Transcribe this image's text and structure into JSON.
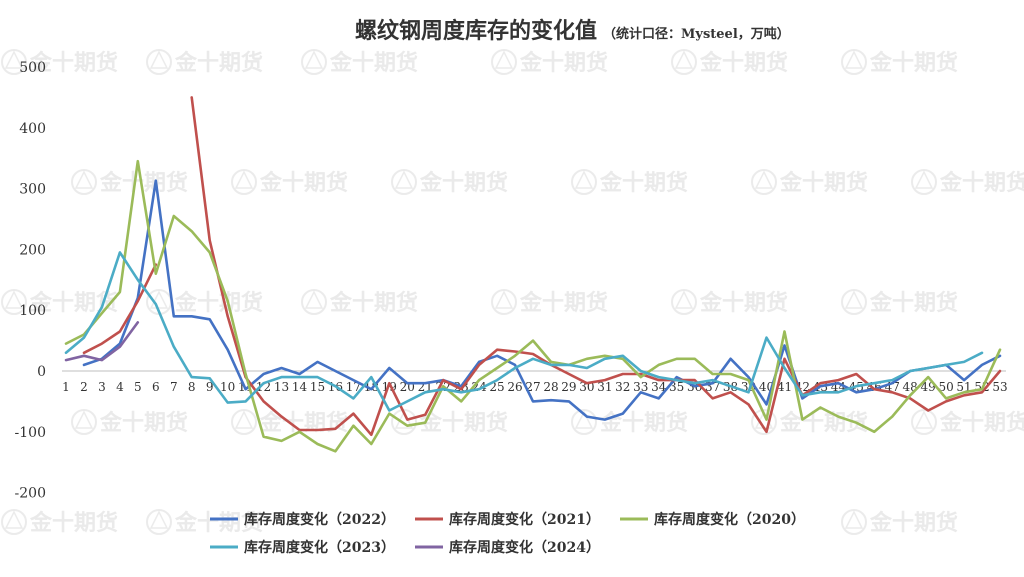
{
  "chart_data": {
    "type": "line",
    "title": "螺纹钢周度库存的变化值",
    "subtitle": "（统计口径：Mysteel，万吨）",
    "watermark": "金十期货",
    "ylim": [
      -200,
      500
    ],
    "yticks": [
      -200,
      -100,
      0,
      100,
      200,
      300,
      400,
      500
    ],
    "x": [
      1,
      2,
      3,
      4,
      5,
      6,
      7,
      8,
      9,
      10,
      11,
      12,
      13,
      14,
      15,
      16,
      17,
      18,
      19,
      20,
      21,
      22,
      23,
      24,
      25,
      26,
      27,
      28,
      29,
      30,
      31,
      32,
      33,
      34,
      35,
      36,
      37,
      38,
      39,
      40,
      41,
      42,
      43,
      44,
      45,
      46,
      47,
      48,
      49,
      50,
      51,
      52,
      53
    ],
    "legend_position": "bottom",
    "series": [
      {
        "name": "库存周度变化（2022）",
        "color": "#4472c4",
        "values": [
          null,
          10,
          20,
          45,
          120,
          313,
          90,
          90,
          85,
          35,
          -30,
          -5,
          5,
          -5,
          15,
          0,
          -15,
          -30,
          5,
          -20,
          -20,
          -15,
          -25,
          15,
          25,
          10,
          -50,
          -48,
          -50,
          -75,
          -80,
          -70,
          -35,
          -45,
          -10,
          -25,
          -20,
          20,
          -10,
          -55,
          42,
          -45,
          -25,
          -20,
          -35,
          -30,
          -20,
          0,
          5,
          10,
          -15,
          10,
          25
        ]
      },
      {
        "name": "库存周度变化（2021）",
        "color": "#c0504d",
        "values": [
          null,
          30,
          45,
          65,
          115,
          175,
          null,
          450,
          215,
          90,
          -10,
          -50,
          -75,
          -97,
          -97,
          -95,
          -70,
          -105,
          -20,
          -80,
          -72,
          -15,
          -30,
          10,
          35,
          32,
          28,
          10,
          -5,
          -20,
          -15,
          -5,
          -5,
          -15,
          -15,
          -15,
          -45,
          -35,
          -55,
          -100,
          20,
          -40,
          -20,
          -15,
          -5,
          -30,
          -35,
          -45,
          -65,
          -50,
          -40,
          -35,
          0
        ]
      },
      {
        "name": "库存周度变化（2020）",
        "color": "#9bbb59",
        "values": [
          45,
          60,
          95,
          130,
          345,
          160,
          255,
          230,
          195,
          115,
          -5,
          -108,
          -115,
          -100,
          -120,
          -132,
          -90,
          -120,
          -70,
          -90,
          -85,
          -25,
          -50,
          -15,
          5,
          25,
          50,
          15,
          10,
          20,
          25,
          20,
          -10,
          10,
          20,
          20,
          -5,
          -5,
          -15,
          -80,
          65,
          -80,
          -60,
          -75,
          -85,
          -100,
          -75,
          -40,
          -10,
          -45,
          -35,
          -30,
          35
        ]
      },
      {
        "name": "库存周度变化（2023）",
        "color": "#4bacc6",
        "values": [
          30,
          55,
          105,
          195,
          150,
          110,
          40,
          -10,
          -12,
          -52,
          -50,
          -20,
          -10,
          -10,
          -10,
          -25,
          -45,
          -10,
          -65,
          -50,
          -35,
          -30,
          -35,
          -30,
          -15,
          5,
          20,
          10,
          10,
          5,
          20,
          25,
          0,
          -10,
          -15,
          -20,
          -15,
          -25,
          -35,
          55,
          5,
          -40,
          -35,
          -35,
          -25,
          -20,
          -15,
          0,
          5,
          10,
          15,
          30,
          null
        ]
      },
      {
        "name": "库存周度变化（2024）",
        "color": "#8064a2",
        "values": [
          18,
          25,
          18,
          40,
          80,
          null,
          null,
          null,
          null,
          null,
          null,
          null,
          null,
          null,
          null,
          null,
          null,
          null,
          null,
          null,
          null,
          null,
          null,
          null,
          null,
          null,
          null,
          null,
          null,
          null,
          null,
          null,
          null,
          null,
          null,
          null,
          null,
          null,
          null,
          null,
          null,
          null,
          null,
          null,
          null,
          null,
          null,
          null,
          null,
          null,
          null,
          null,
          null
        ]
      }
    ]
  }
}
